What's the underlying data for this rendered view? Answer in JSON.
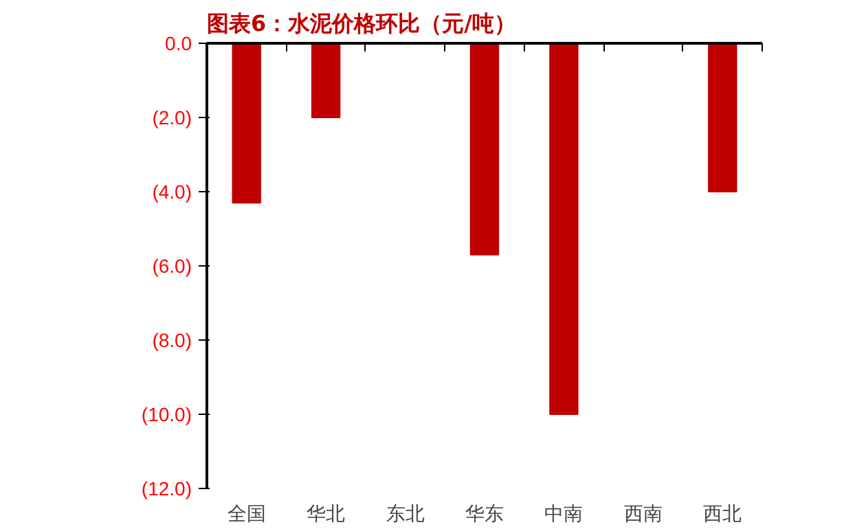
{
  "chart_data": {
    "type": "bar",
    "title": "图表6：水泥价格环比（元/吨）",
    "categories": [
      "全国",
      "华北",
      "东北",
      "华东",
      "中南",
      "西南",
      "西北"
    ],
    "values": [
      -4.3,
      -2.0,
      0,
      -5.7,
      -10.0,
      0,
      -4.0
    ],
    "color": "#c00000",
    "ylim": [
      -12,
      0
    ],
    "yticks": [
      {
        "value": -12,
        "label": "(12.0)"
      },
      {
        "value": -10,
        "label": "(10.0)"
      },
      {
        "value": -8,
        "label": "(8.0)"
      },
      {
        "value": -6,
        "label": "(6.0)"
      },
      {
        "value": -4,
        "label": "(4.0)"
      },
      {
        "value": -2,
        "label": "(2.0)"
      },
      {
        "value": 0,
        "label": "0.0"
      }
    ],
    "grid": false
  }
}
